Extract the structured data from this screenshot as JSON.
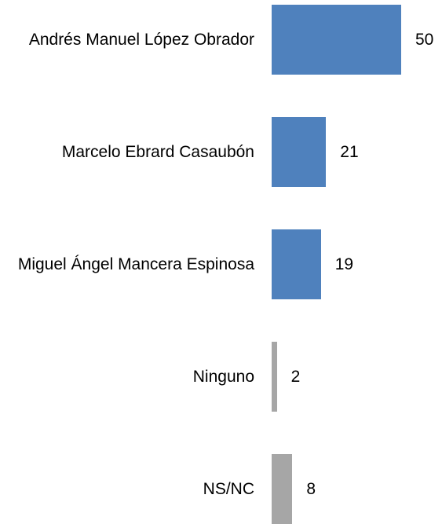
{
  "chart_data": {
    "type": "bar",
    "orientation": "horizontal",
    "categories": [
      "Andrés Manuel López Obrador",
      "Marcelo Ebrard Casaubón",
      "Miguel Ángel Mancera Espinosa",
      "Ninguno",
      "NS/NC"
    ],
    "values": [
      50,
      21,
      19,
      2,
      8
    ],
    "colors": [
      "#4f81bd",
      "#4f81bd",
      "#4f81bd",
      "#a6a6a6",
      "#a6a6a6"
    ]
  }
}
